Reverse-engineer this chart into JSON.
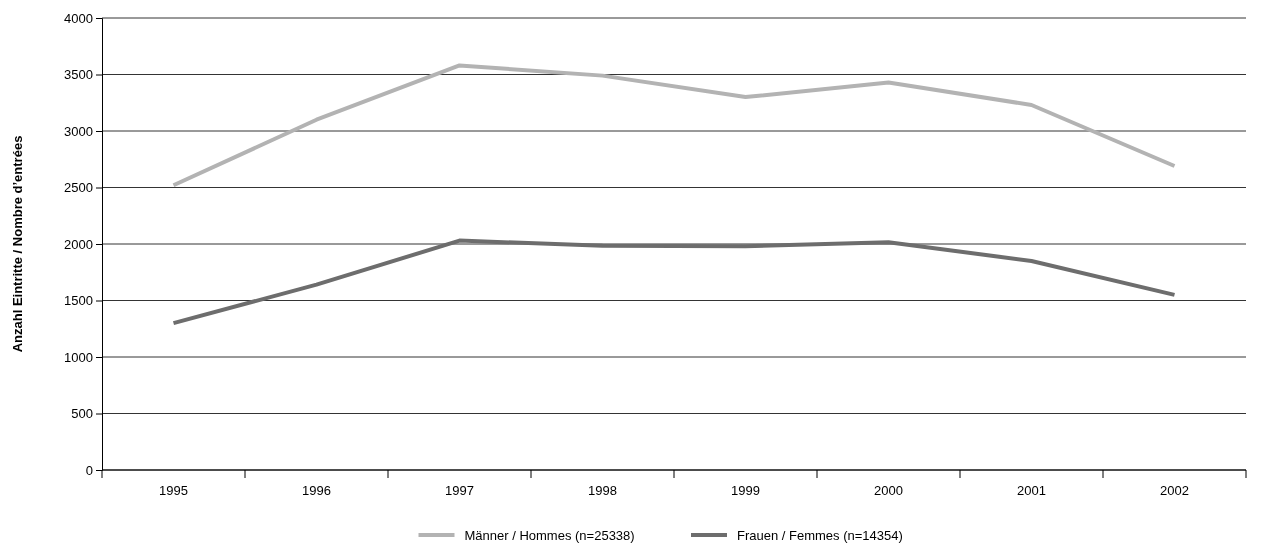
{
  "chart_data": {
    "type": "line",
    "ylabel": "Anzahl Eintritte / Nombre d’entrées",
    "categories": [
      "1995",
      "1996",
      "1997",
      "1998",
      "1999",
      "2000",
      "2001",
      "2002"
    ],
    "series": [
      {
        "name": "Männer / Hommes (n=25338)",
        "color": "#b3b3b3",
        "values": [
          2520,
          3100,
          3580,
          3490,
          3300,
          3430,
          3230,
          2690
        ]
      },
      {
        "name": "Frauen / Femmes (n=14354)",
        "color": "#6d6d6d",
        "values": [
          1300,
          1640,
          2030,
          1985,
          1980,
          2015,
          1850,
          1550
        ]
      }
    ],
    "ylim": [
      0,
      4000
    ],
    "yticks": [
      0,
      500,
      1000,
      1500,
      2000,
      2500,
      3000,
      3500,
      4000
    ],
    "grid": "y",
    "legend": "bottom",
    "marker": "none",
    "line_style": "solid"
  }
}
